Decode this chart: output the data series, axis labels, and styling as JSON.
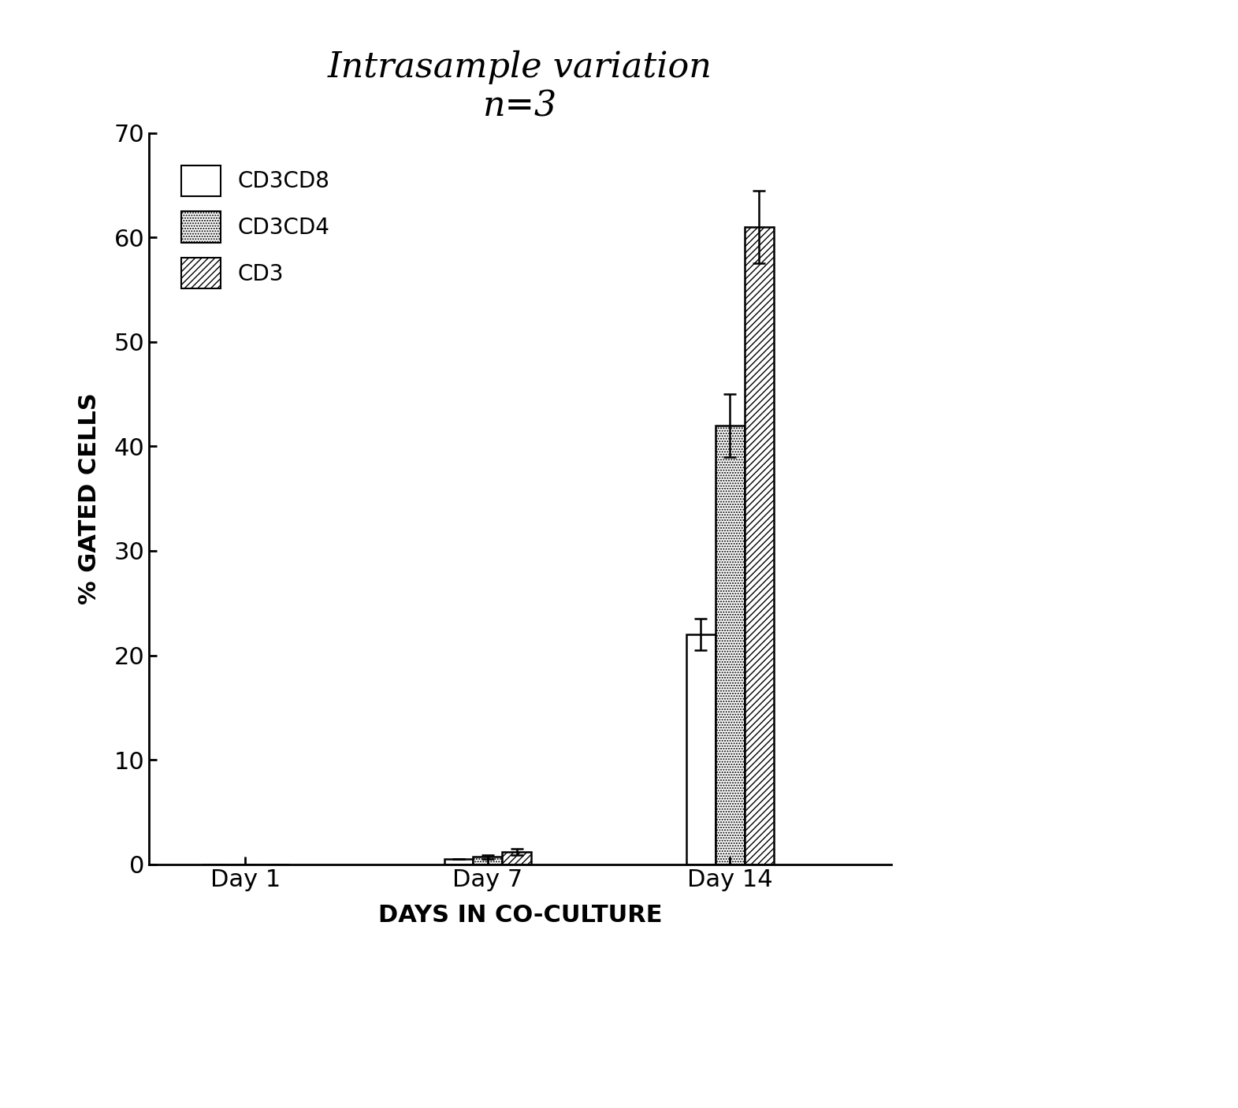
{
  "title_line1": "Intrasample variation",
  "title_line2": "n=3",
  "categories": [
    "Day 1",
    "Day 7",
    "Day 14"
  ],
  "series": [
    {
      "label": "CD3CD8",
      "values": [
        0.0,
        0.5,
        22.0
      ],
      "errors": [
        0.0,
        0.0,
        1.5
      ],
      "hatch": "",
      "facecolor": "white",
      "edgecolor": "black"
    },
    {
      "label": "CD3CD4",
      "values": [
        0.0,
        0.7,
        42.0
      ],
      "errors": [
        0.0,
        0.2,
        3.0
      ],
      "hatch": ".....",
      "facecolor": "white",
      "edgecolor": "black"
    },
    {
      "label": "CD3",
      "values": [
        0.0,
        1.2,
        61.0
      ],
      "errors": [
        0.0,
        0.3,
        3.5
      ],
      "hatch": "////",
      "facecolor": "white",
      "edgecolor": "black"
    }
  ],
  "ylabel": "% GATED CELLS",
  "xlabel": "DAYS IN CO-CULTURE",
  "ylim": [
    0,
    70
  ],
  "yticks": [
    0,
    10,
    20,
    30,
    40,
    50,
    60,
    70
  ],
  "bar_width": 0.18,
  "group_positions": [
    0.5,
    2.0,
    3.5
  ],
  "background_color": "white",
  "title_fontsize": 32,
  "axis_label_fontsize": 22,
  "tick_fontsize": 22,
  "legend_fontsize": 20,
  "xlim": [
    -0.1,
    4.5
  ]
}
